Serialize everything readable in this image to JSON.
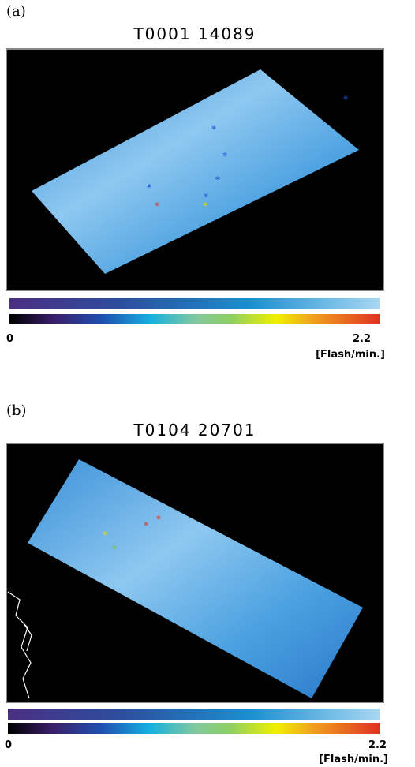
{
  "panels": [
    {
      "label": "(a)",
      "title": "T0001 14089",
      "scale_min": "0",
      "scale_max": "2.2",
      "unit": "[Flash/min.]"
    },
    {
      "label": "(b)",
      "title": "T0104 20701",
      "scale_min": "0",
      "scale_max": "2.2",
      "unit": "[Flash/min.]"
    }
  ]
}
